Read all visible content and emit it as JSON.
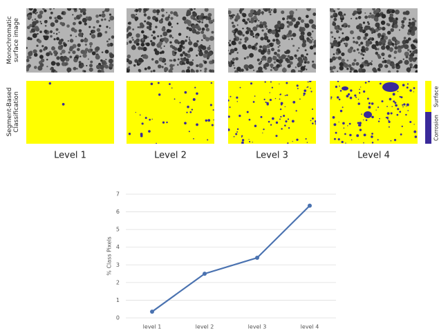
{
  "figure": {
    "row_labels": [
      [
        "Monochromatic",
        "surface image"
      ],
      [
        "Segment-Based",
        "Classification"
      ]
    ],
    "columns": [
      "Level 1",
      "Level 2",
      "Level 3",
      "Level 4"
    ],
    "colorbar": [
      "Surface",
      "Corrosion"
    ]
  },
  "chart_data": {
    "type": "line",
    "y_label": "% Class Pixels",
    "categories": [
      "level 1",
      "level 2",
      "level 3",
      "level 4"
    ],
    "values": [
      0.35,
      2.5,
      3.4,
      6.35
    ],
    "color": "#4a72b0",
    "ylim": [
      0,
      7
    ],
    "yticks": [
      0,
      1,
      2,
      3,
      4,
      5,
      6,
      7
    ],
    "grid": true
  }
}
